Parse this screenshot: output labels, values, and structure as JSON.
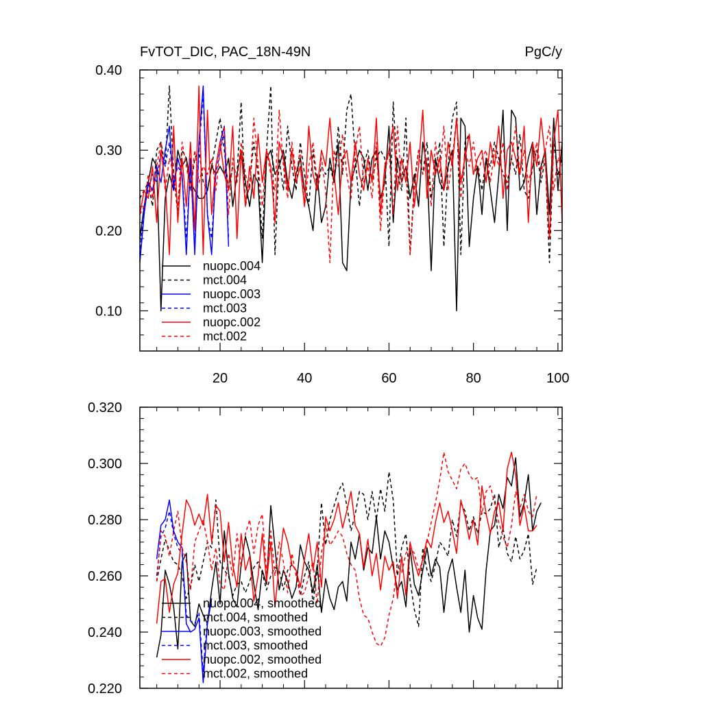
{
  "chart_data": [
    {
      "type": "line",
      "title": "FvTOT_DIC, PAC_18N-49N",
      "units": "PgC/y",
      "xlabel": "",
      "ylabel": "",
      "xlim": [
        1,
        101
      ],
      "ylim": [
        0.05,
        0.4
      ],
      "xticks": [
        20,
        40,
        60,
        80,
        100
      ],
      "xtick_labels": [
        "20",
        "40",
        "60",
        "80",
        "100"
      ],
      "yticks": [
        0.1,
        0.2,
        0.3,
        0.4
      ],
      "ytick_labels": [
        "0.10",
        "0.20",
        "0.30",
        "0.40"
      ],
      "legend_position": "bottom-left",
      "series": [
        {
          "name": "nuopc.004",
          "color": "#000000",
          "dash": "solid",
          "x_start": 1,
          "values": [
            0.19,
            0.23,
            0.26,
            0.29,
            0.28,
            0.1,
            0.24,
            0.27,
            0.25,
            0.3,
            0.28,
            0.29,
            0.26,
            0.25,
            0.24,
            0.24,
            0.25,
            0.28,
            0.27,
            0.28,
            0.27,
            0.29,
            0.23,
            0.27,
            0.3,
            0.26,
            0.23,
            0.27,
            0.26,
            0.16,
            0.29,
            0.3,
            0.27,
            0.28,
            0.3,
            0.26,
            0.24,
            0.27,
            0.29,
            0.25,
            0.23,
            0.2,
            0.27,
            0.21,
            0.23,
            0.29,
            0.26,
            0.31,
            0.16,
            0.15,
            0.26,
            0.28,
            0.3,
            0.29,
            0.25,
            0.29,
            0.3,
            0.24,
            0.26,
            0.33,
            0.21,
            0.29,
            0.26,
            0.28,
            0.24,
            0.27,
            0.23,
            0.31,
            0.28,
            0.15,
            0.29,
            0.26,
            0.25,
            0.28,
            0.3,
            0.1,
            0.34,
            0.33,
            0.18,
            0.24,
            0.28,
            0.22,
            0.29,
            0.25,
            0.21,
            0.27,
            0.35,
            0.2,
            0.35,
            0.34,
            0.25,
            0.26,
            0.29,
            0.31,
            0.22,
            0.28,
            0.3,
            0.22,
            0.34,
            0.25,
            0.31
          ]
        },
        {
          "name": "mct.004",
          "color": "#000000",
          "dash": "dashed",
          "x_start": 1,
          "values": [
            0.24,
            0.25,
            0.26,
            0.23,
            0.3,
            0.31,
            0.28,
            0.38,
            0.27,
            0.22,
            0.3,
            0.29,
            0.25,
            0.29,
            0.3,
            0.26,
            0.25,
            0.28,
            0.31,
            0.34,
            0.3,
            0.25,
            0.28,
            0.27,
            0.36,
            0.23,
            0.26,
            0.31,
            0.27,
            0.19,
            0.3,
            0.38,
            0.17,
            0.29,
            0.25,
            0.33,
            0.28,
            0.25,
            0.31,
            0.27,
            0.23,
            0.3,
            0.25,
            0.28,
            0.27,
            0.28,
            0.26,
            0.33,
            0.27,
            0.35,
            0.37,
            0.29,
            0.23,
            0.28,
            0.3,
            0.26,
            0.29,
            0.3,
            0.29,
            0.18,
            0.36,
            0.27,
            0.25,
            0.34,
            0.17,
            0.26,
            0.3,
            0.27,
            0.31,
            0.24,
            0.27,
            0.31,
            0.18,
            0.28,
            0.34,
            0.36,
            0.17,
            0.31,
            0.32,
            0.27,
            0.28,
            0.25,
            0.29,
            0.28,
            0.31,
            0.29,
            0.27,
            0.26,
            0.29,
            0.27,
            0.32,
            0.25,
            0.24,
            0.28,
            0.3,
            0.26,
            0.29,
            0.16,
            0.31,
            0.27,
            0.29
          ]
        },
        {
          "name": "nuopc.003",
          "color": "#0000ff",
          "dash": "solid",
          "x_start": 1,
          "values": [
            0.16,
            0.22,
            0.26,
            0.25,
            0.28,
            0.26,
            0.3,
            0.33,
            0.25,
            0.29,
            0.27,
            0.17,
            0.29,
            0.17,
            0.31,
            0.38,
            0.22,
            0.17,
            0.28,
            0.31,
            0.33,
            0.18
          ]
        },
        {
          "name": "mct.003",
          "color": "#0000ff",
          "dash": "dashed",
          "x_start": 1,
          "values": [
            0.17,
            0.23,
            0.25,
            0.27,
            0.26,
            0.3,
            0.28,
            0.31,
            0.26,
            0.28,
            0.27,
            0.19,
            0.28,
            0.18,
            0.3,
            0.37,
            0.22,
            0.19,
            0.27,
            0.3,
            0.32,
            0.19
          ]
        },
        {
          "name": "nuopc.002",
          "color": "#ff0000",
          "dash": "solid",
          "x_start": 1,
          "values": [
            0.22,
            0.25,
            0.24,
            0.28,
            0.21,
            0.3,
            0.26,
            0.17,
            0.33,
            0.21,
            0.29,
            0.23,
            0.31,
            0.2,
            0.38,
            0.17,
            0.35,
            0.22,
            0.28,
            0.31,
            0.27,
            0.25,
            0.33,
            0.19,
            0.3,
            0.23,
            0.28,
            0.24,
            0.32,
            0.26,
            0.3,
            0.28,
            0.21,
            0.31,
            0.29,
            0.25,
            0.3,
            0.26,
            0.28,
            0.23,
            0.33,
            0.27,
            0.25,
            0.3,
            0.28,
            0.34,
            0.27,
            0.22,
            0.29,
            0.3,
            0.26,
            0.31,
            0.27,
            0.25,
            0.29,
            0.26,
            0.34,
            0.22,
            0.28,
            0.3,
            0.33,
            0.25,
            0.29,
            0.26,
            0.31,
            0.23,
            0.28,
            0.35,
            0.24,
            0.3,
            0.27,
            0.29,
            0.25,
            0.31,
            0.28,
            0.34,
            0.26,
            0.29,
            0.32,
            0.27,
            0.29,
            0.3,
            0.26,
            0.31,
            0.28,
            0.33,
            0.24,
            0.3,
            0.31,
            0.29,
            0.27,
            0.33,
            0.21,
            0.31,
            0.28,
            0.34,
            0.29,
            0.19,
            0.31,
            0.35,
            0.21
          ]
        },
        {
          "name": "mct.002",
          "color": "#ff0000",
          "dash": "dashed",
          "x_start": 1,
          "values": [
            0.22,
            0.23,
            0.27,
            0.24,
            0.28,
            0.31,
            0.25,
            0.29,
            0.27,
            0.23,
            0.31,
            0.28,
            0.25,
            0.3,
            0.26,
            0.28,
            0.27,
            0.29,
            0.25,
            0.3,
            0.33,
            0.22,
            0.29,
            0.26,
            0.31,
            0.27,
            0.25,
            0.34,
            0.28,
            0.23,
            0.3,
            0.27,
            0.25,
            0.35,
            0.28,
            0.24,
            0.31,
            0.27,
            0.3,
            0.23,
            0.28,
            0.31,
            0.26,
            0.29,
            0.25,
            0.16,
            0.3,
            0.28,
            0.32,
            0.27,
            0.24,
            0.3,
            0.33,
            0.26,
            0.28,
            0.24,
            0.31,
            0.2,
            0.27,
            0.3,
            0.22,
            0.33,
            0.26,
            0.28,
            0.17,
            0.25,
            0.3,
            0.27,
            0.29,
            0.23,
            0.31,
            0.27,
            0.33,
            0.25,
            0.29,
            0.34,
            0.24,
            0.3,
            0.28,
            0.31,
            0.27,
            0.29,
            0.3,
            0.26,
            0.3,
            0.28,
            0.31,
            0.25,
            0.29,
            0.33,
            0.27,
            0.3,
            0.26,
            0.28,
            0.31,
            0.27,
            0.3,
            0.33,
            0.25,
            0.29,
            0.28
          ]
        }
      ]
    },
    {
      "type": "line",
      "title": "",
      "xlabel": "",
      "ylabel": "",
      "xlim": [
        1,
        101
      ],
      "ylim": [
        0.22,
        0.32
      ],
      "xticks": [
        20,
        40,
        60,
        80,
        100
      ],
      "yticks": [
        0.22,
        0.24,
        0.26,
        0.28,
        0.3,
        0.32
      ],
      "ytick_labels": [
        "0.220",
        "0.240",
        "0.260",
        "0.280",
        "0.300",
        "0.320"
      ],
      "legend_position": "bottom-left",
      "series": [
        {
          "name": "nuopc.004, smoothed",
          "color": "#000000",
          "dash": "solid",
          "x_start": 5,
          "values": [
            0.231,
            0.239,
            0.262,
            0.257,
            0.249,
            0.234,
            0.265,
            0.268,
            0.244,
            0.242,
            0.25,
            0.246,
            0.243,
            0.255,
            0.265,
            0.25,
            0.276,
            0.261,
            0.252,
            0.249,
            0.264,
            0.274,
            0.268,
            0.257,
            0.248,
            0.262,
            0.257,
            0.285,
            0.27,
            0.255,
            0.262,
            0.258,
            0.252,
            0.256,
            0.271,
            0.265,
            0.262,
            0.254,
            0.264,
            0.247,
            0.259,
            0.252,
            0.248,
            0.256,
            0.258,
            0.251,
            0.272,
            0.266,
            0.275,
            0.262,
            0.27,
            0.268,
            0.281,
            0.266,
            0.276,
            0.272,
            0.263,
            0.255,
            0.258,
            0.249,
            0.27,
            0.257,
            0.253,
            0.262,
            0.27,
            0.26,
            0.266,
            0.263,
            0.247,
            0.261,
            0.266,
            0.256,
            0.247,
            0.262,
            0.24,
            0.253,
            0.245,
            0.241,
            0.262,
            0.276,
            0.278,
            0.289,
            0.284,
            0.295,
            0.292,
            0.302,
            0.281,
            0.286,
            0.296,
            0.276,
            0.283,
            0.286
          ]
        },
        {
          "name": "mct.004, smoothed",
          "color": "#000000",
          "dash": "dashed",
          "x_start": 5,
          "values": [
            0.258,
            0.266,
            0.273,
            0.269,
            0.265,
            0.264,
            0.26,
            0.252,
            0.256,
            0.264,
            0.258,
            0.265,
            0.272,
            0.27,
            0.287,
            0.265,
            0.262,
            0.26,
            0.253,
            0.257,
            0.258,
            0.254,
            0.258,
            0.263,
            0.265,
            0.261,
            0.255,
            0.26,
            0.263,
            0.262,
            0.255,
            0.262,
            0.264,
            0.262,
            0.253,
            0.26,
            0.265,
            0.25,
            0.262,
            0.286,
            0.271,
            0.28,
            0.285,
            0.29,
            0.293,
            0.285,
            0.276,
            0.282,
            0.29,
            0.289,
            0.28,
            0.29,
            0.28,
            0.291,
            0.283,
            0.297,
            0.287,
            0.26,
            0.27,
            0.275,
            0.258,
            0.248,
            0.242,
            0.27,
            0.262,
            0.258,
            0.264,
            0.272,
            0.27,
            0.267,
            0.28,
            0.274,
            0.286,
            0.283,
            0.276,
            0.281,
            0.275,
            0.283,
            0.282,
            0.284,
            0.289,
            0.27,
            0.277,
            0.268,
            0.265,
            0.274,
            0.266,
            0.269,
            0.275,
            0.257,
            0.263
          ]
        },
        {
          "name": "nuopc.003, smoothed",
          "color": "#0000ff",
          "dash": "solid",
          "x_start": 5,
          "values": [
            0.266,
            0.278,
            0.28,
            0.287,
            0.276,
            0.272,
            0.27,
            0.243,
            0.24,
            0.241,
            0.245,
            0.222,
            0.243,
            0.252
          ]
        },
        {
          "name": "mct.003, smoothed",
          "color": "#0000ff",
          "dash": "dashed",
          "x_start": 5,
          "values": [
            0.26,
            0.274,
            0.277,
            0.283,
            0.275,
            0.27,
            0.268,
            0.246,
            0.244,
            0.243,
            0.247,
            0.226,
            0.245,
            0.25
          ]
        },
        {
          "name": "nuopc.002, smoothed",
          "color": "#ff0000",
          "dash": "solid",
          "x_start": 5,
          "values": [
            0.243,
            0.258,
            0.259,
            0.247,
            0.257,
            0.261,
            0.275,
            0.287,
            0.284,
            0.278,
            0.282,
            0.278,
            0.289,
            0.272,
            0.285,
            0.283,
            0.265,
            0.279,
            0.264,
            0.256,
            0.275,
            0.262,
            0.267,
            0.251,
            0.26,
            0.275,
            0.258,
            0.272,
            0.249,
            0.264,
            0.277,
            0.272,
            0.264,
            0.262,
            0.256,
            0.266,
            0.275,
            0.262,
            0.272,
            0.256,
            0.281,
            0.276,
            0.28,
            0.286,
            0.277,
            0.283,
            0.29,
            0.278,
            0.275,
            0.263,
            0.273,
            0.26,
            0.268,
            0.255,
            0.267,
            0.262,
            0.265,
            0.252,
            0.267,
            0.253,
            0.272,
            0.265,
            0.26,
            0.266,
            0.273,
            0.27,
            0.279,
            0.286,
            0.279,
            0.283,
            0.276,
            0.268,
            0.287,
            0.281,
            0.273,
            0.28,
            0.271,
            0.292,
            0.282,
            0.275,
            0.283,
            0.286,
            0.276,
            0.298,
            0.304,
            0.296,
            0.278,
            0.285,
            0.276,
            0.276,
            0.278
          ]
        },
        {
          "name": "mct.002, smoothed",
          "color": "#ff0000",
          "dash": "dashed",
          "x_start": 5,
          "values": [
            0.258,
            0.276,
            0.274,
            0.267,
            0.276,
            0.283,
            0.27,
            0.265,
            0.255,
            0.272,
            0.276,
            0.28,
            0.272,
            0.262,
            0.27,
            0.257,
            0.255,
            0.268,
            0.26,
            0.275,
            0.263,
            0.275,
            0.28,
            0.268,
            0.278,
            0.282,
            0.261,
            0.276,
            0.26,
            0.272,
            0.265,
            0.254,
            0.268,
            0.26,
            0.253,
            0.254,
            0.26,
            0.265,
            0.25,
            0.268,
            0.278,
            0.271,
            0.273,
            0.276,
            0.274,
            0.268,
            0.264,
            0.262,
            0.252,
            0.246,
            0.245,
            0.24,
            0.236,
            0.235,
            0.238,
            0.246,
            0.252,
            0.264,
            0.261,
            0.268,
            0.27,
            0.268,
            0.262,
            0.265,
            0.272,
            0.279,
            0.286,
            0.294,
            0.304,
            0.297,
            0.294,
            0.291,
            0.298,
            0.3,
            0.296,
            0.294,
            0.295,
            0.282,
            0.29,
            0.292,
            0.286,
            0.279,
            0.274,
            0.27,
            0.278,
            0.29,
            0.284,
            0.289,
            0.283,
            0.281,
            0.289
          ]
        }
      ]
    }
  ]
}
